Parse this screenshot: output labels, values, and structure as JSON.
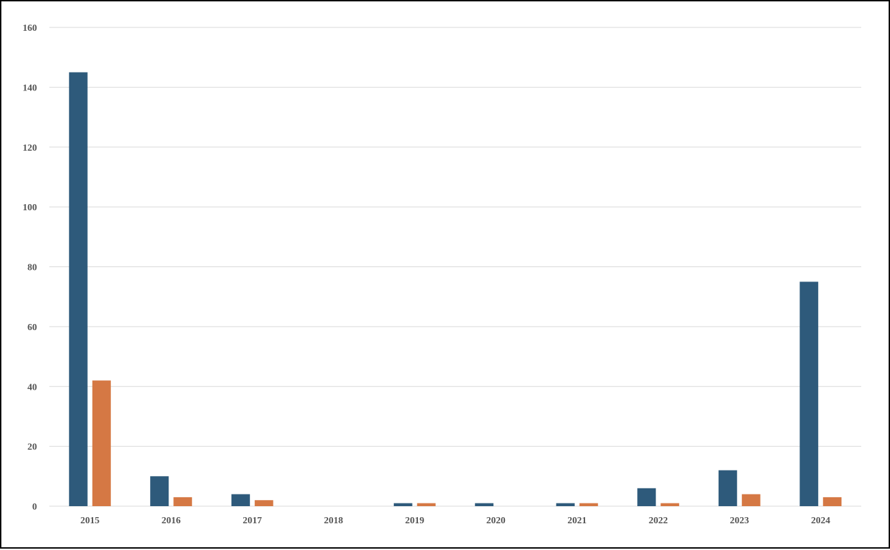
{
  "chart_data": {
    "type": "bar",
    "title": "",
    "xlabel": "",
    "ylabel": "",
    "categories": [
      "2015",
      "2016",
      "2017",
      "2018",
      "2019",
      "2020",
      "2021",
      "2022",
      "2023",
      "2024"
    ],
    "series": [
      {
        "color": "#2e5a7b",
        "values": [
          145,
          10,
          4,
          0,
          1,
          1,
          1,
          6,
          12,
          75
        ]
      },
      {
        "color": "#d57844",
        "values": [
          42,
          3,
          2,
          0,
          1,
          0,
          1,
          1,
          4,
          3
        ]
      }
    ],
    "ylim": [
      0,
      160
    ],
    "yticks": [
      "0",
      "20",
      "40",
      "60",
      "80",
      "100",
      "120",
      "140",
      "160"
    ],
    "grid": true,
    "gridColor": "#d9d9d9",
    "legend": "none"
  }
}
